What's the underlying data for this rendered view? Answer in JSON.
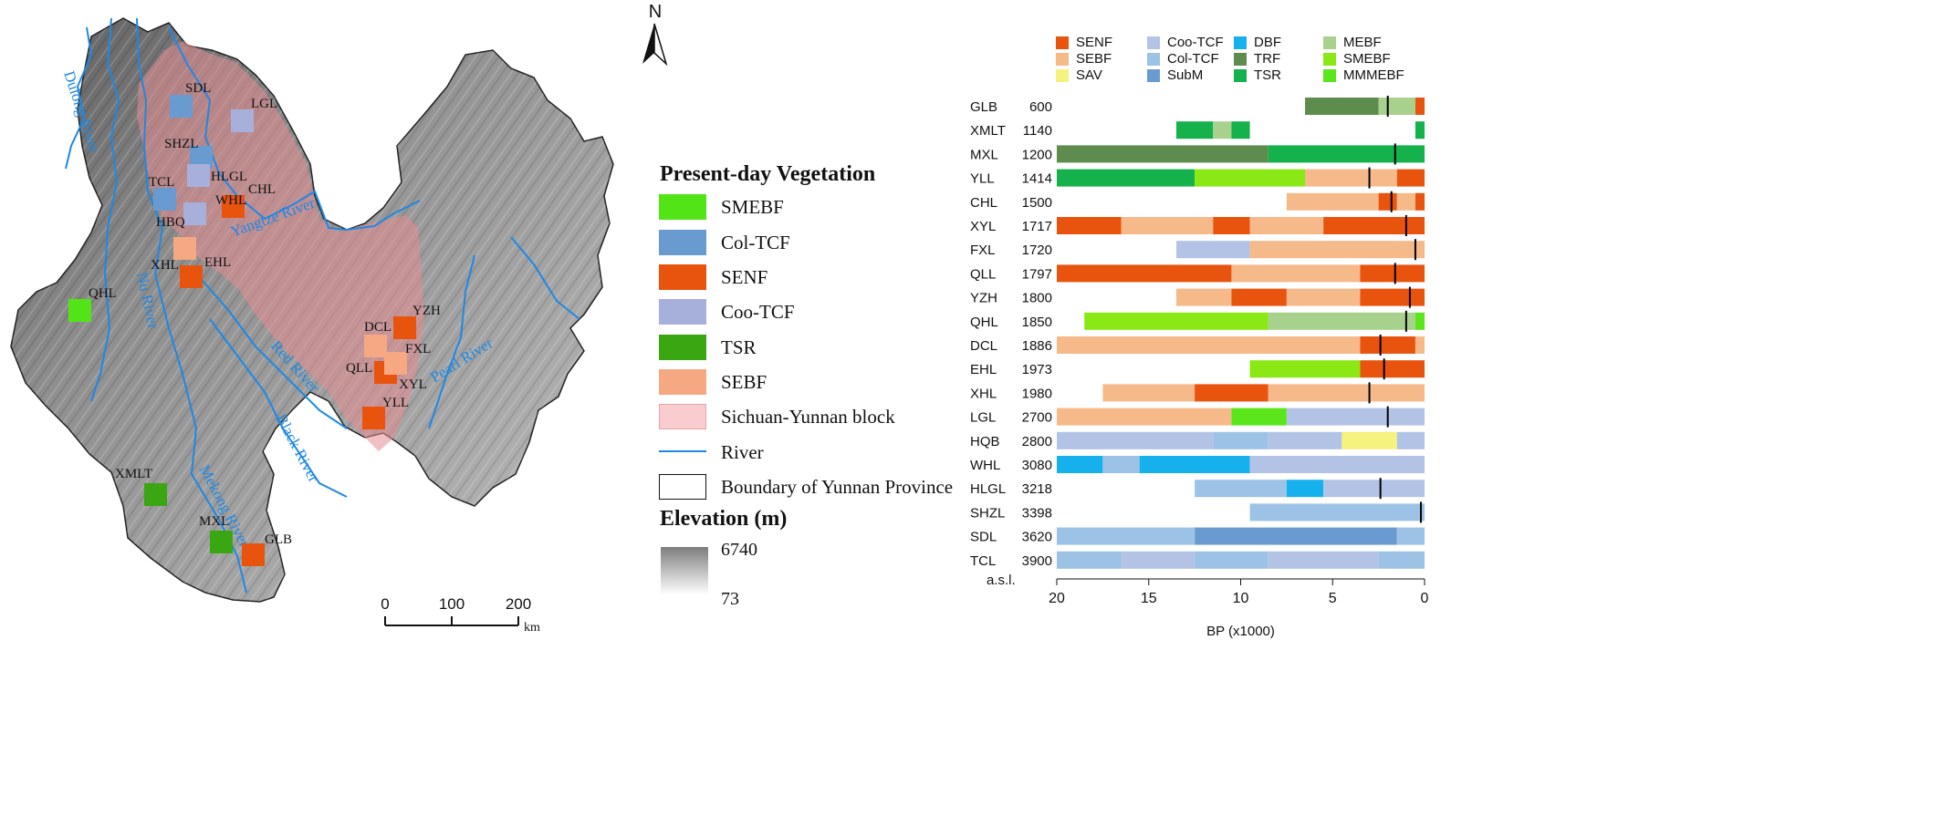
{
  "north": "N",
  "map_legend": {
    "veg_title": "Present-day Vegetation",
    "items": [
      {
        "label": "SMEBF",
        "color": "#52e416"
      },
      {
        "label": "Col-TCF",
        "color": "#6a9bd0"
      },
      {
        "label": "SENF",
        "color": "#e8540e"
      },
      {
        "label": "Coo-TCF",
        "color": "#a7b0db"
      },
      {
        "label": "TSR",
        "color": "#3aa612"
      },
      {
        "label": "SEBF",
        "color": "#f6a882"
      }
    ],
    "block_label": "Sichuan-Yunnan block",
    "river_label": "River",
    "boundary_label": "Boundary of Yunnan Province",
    "elev_title": "Elevation (m)",
    "elev_max": "6740",
    "elev_min": "73"
  },
  "scale_bar": {
    "ticks": [
      "0",
      "100",
      "200"
    ],
    "unit": "km"
  },
  "rivers": [
    "Yangtze River",
    "Red River",
    "Pearl River",
    "Black River",
    "Mekong River",
    "Nu River",
    "Dulong River"
  ],
  "sites": [
    {
      "label": "SDL",
      "color": "#6a9bd0"
    },
    {
      "label": "LGL",
      "color": "#a7b0db"
    },
    {
      "label": "SHZL",
      "color": "#6a9bd0"
    },
    {
      "label": "HLGL",
      "color": "#a7b0db"
    },
    {
      "label": "TCL",
      "color": "#6a9bd0"
    },
    {
      "label": "WHL",
      "color": "#a7b0db"
    },
    {
      "label": "CHL",
      "color": "#e8540e"
    },
    {
      "label": "HBQ",
      "color": "#a7b0db"
    },
    {
      "label": "XHL",
      "color": "#f6a882"
    },
    {
      "label": "EHL",
      "color": "#e8540e"
    },
    {
      "label": "QHL",
      "color": "#52e416"
    },
    {
      "label": "YZH",
      "color": "#e8540e"
    },
    {
      "label": "DCL",
      "color": "#f6a882"
    },
    {
      "label": "FXL",
      "color": "#f6a882"
    },
    {
      "label": "QLL",
      "color": "#e8540e"
    },
    {
      "label": "XYL",
      "color": "#f6a882"
    },
    {
      "label": "YLL",
      "color": "#e8540e"
    },
    {
      "label": "XMLT",
      "color": "#3aa612"
    },
    {
      "label": "MXL",
      "color": "#3aa612"
    },
    {
      "label": "GLB",
      "color": "#e8540e"
    }
  ],
  "veg_key": [
    {
      "label": "SENF",
      "color": "#e8540e"
    },
    {
      "label": "SEBF",
      "color": "#f6b98a"
    },
    {
      "label": "SAV",
      "color": "#f6f27e"
    },
    {
      "label": "Coo-TCF",
      "color": "#b3c3e6"
    },
    {
      "label": "Col-TCF",
      "color": "#9cc3e6"
    },
    {
      "label": "SubM",
      "color": "#6a9bd0"
    },
    {
      "label": "DBF",
      "color": "#16b1ec"
    },
    {
      "label": "TRF",
      "color": "#5e8c4f"
    },
    {
      "label": "TSR",
      "color": "#14b14c"
    },
    {
      "label": "MEBF",
      "color": "#a9d18e"
    },
    {
      "label": "SMEBF",
      "color": "#8ae814"
    },
    {
      "label": "MMMEBF",
      "color": "#5ae61a"
    }
  ],
  "chart_data": {
    "type": "bar",
    "subtype": "stacked-horizontal-timeline",
    "xlabel": "BP (x1000)",
    "xlim": [
      20,
      0
    ],
    "xticks": [
      20,
      15,
      10,
      5,
      0
    ],
    "elev_header": "a.s.l.",
    "rows": [
      {
        "site": "GLB",
        "elev": "600",
        "marker": 2.0,
        "segs": [
          [
            6.5,
            2.5,
            "TRF"
          ],
          [
            2.5,
            0.5,
            "MEBF"
          ],
          [
            0.5,
            0,
            "SENF"
          ]
        ]
      },
      {
        "site": "XMLT",
        "elev": "1140",
        "marker": null,
        "segs": [
          [
            13.5,
            11.5,
            "TSR"
          ],
          [
            11.5,
            10.5,
            "MEBF"
          ],
          [
            10.5,
            9.5,
            "TSR"
          ],
          [
            0.5,
            0,
            "TSR"
          ]
        ]
      },
      {
        "site": "MXL",
        "elev": "1200",
        "marker": 1.6,
        "segs": [
          [
            20,
            8.5,
            "TRF"
          ],
          [
            8.5,
            0,
            "TSR"
          ]
        ]
      },
      {
        "site": "YLL",
        "elev": "1414",
        "marker": 3.0,
        "segs": [
          [
            20,
            12.5,
            "TSR"
          ],
          [
            12.5,
            6.5,
            "SMEBF"
          ],
          [
            6.5,
            1.5,
            "SEBF"
          ],
          [
            1.5,
            0,
            "SENF"
          ]
        ]
      },
      {
        "site": "CHL",
        "elev": "1500",
        "marker": 1.8,
        "segs": [
          [
            7.5,
            2.5,
            "SEBF"
          ],
          [
            2.5,
            1.5,
            "SENF"
          ],
          [
            1.5,
            0.5,
            "SEBF"
          ],
          [
            0.5,
            0,
            "SENF"
          ]
        ]
      },
      {
        "site": "XYL",
        "elev": "1717",
        "marker": 1.0,
        "segs": [
          [
            20,
            16.5,
            "SENF"
          ],
          [
            16.5,
            11.5,
            "SEBF"
          ],
          [
            11.5,
            9.5,
            "SENF"
          ],
          [
            9.5,
            5.5,
            "SEBF"
          ],
          [
            5.5,
            0,
            "SENF"
          ]
        ]
      },
      {
        "site": "FXL",
        "elev": "1720",
        "marker": 0.5,
        "segs": [
          [
            13.5,
            9.5,
            "Coo-TCF"
          ],
          [
            9.5,
            0,
            "SEBF"
          ]
        ]
      },
      {
        "site": "QLL",
        "elev": "1797",
        "marker": 1.6,
        "segs": [
          [
            20,
            10.5,
            "SENF"
          ],
          [
            10.5,
            3.5,
            "SEBF"
          ],
          [
            3.5,
            0,
            "SENF"
          ]
        ]
      },
      {
        "site": "YZH",
        "elev": "1800",
        "marker": 0.8,
        "segs": [
          [
            13.5,
            10.5,
            "SEBF"
          ],
          [
            10.5,
            7.5,
            "SENF"
          ],
          [
            7.5,
            3.5,
            "SEBF"
          ],
          [
            3.5,
            0,
            "SENF"
          ]
        ]
      },
      {
        "site": "QHL",
        "elev": "1850",
        "marker": 1.0,
        "segs": [
          [
            18.5,
            8.5,
            "SMEBF"
          ],
          [
            8.5,
            0.5,
            "MEBF"
          ],
          [
            0.5,
            0,
            "MMMEBF"
          ]
        ]
      },
      {
        "site": "DCL",
        "elev": "1886",
        "marker": 2.4,
        "segs": [
          [
            20,
            3.5,
            "SEBF"
          ],
          [
            3.5,
            0.5,
            "SENF"
          ],
          [
            0.5,
            0,
            "SEBF"
          ]
        ]
      },
      {
        "site": "EHL",
        "elev": "1973",
        "marker": 2.2,
        "segs": [
          [
            9.5,
            3.5,
            "SMEBF"
          ],
          [
            3.5,
            0,
            "SENF"
          ]
        ]
      },
      {
        "site": "XHL",
        "elev": "1980",
        "marker": 3.0,
        "segs": [
          [
            17.5,
            12.5,
            "SEBF"
          ],
          [
            12.5,
            8.5,
            "SENF"
          ],
          [
            8.5,
            0,
            "SEBF"
          ]
        ]
      },
      {
        "site": "LGL",
        "elev": "2700",
        "marker": 2.0,
        "segs": [
          [
            20,
            10.5,
            "SEBF"
          ],
          [
            10.5,
            7.5,
            "MMMEBF"
          ],
          [
            7.5,
            0,
            "Coo-TCF"
          ]
        ]
      },
      {
        "site": "HQB",
        "elev": "2800",
        "marker": null,
        "segs": [
          [
            20,
            11.5,
            "Coo-TCF"
          ],
          [
            11.5,
            8.5,
            "Col-TCF"
          ],
          [
            8.5,
            4.5,
            "Coo-TCF"
          ],
          [
            4.5,
            1.5,
            "SAV"
          ],
          [
            1.5,
            0,
            "Coo-TCF"
          ]
        ]
      },
      {
        "site": "WHL",
        "elev": "3080",
        "marker": null,
        "segs": [
          [
            20,
            17.5,
            "DBF"
          ],
          [
            17.5,
            15.5,
            "Col-TCF"
          ],
          [
            15.5,
            9.5,
            "DBF"
          ],
          [
            9.5,
            0,
            "Coo-TCF"
          ]
        ]
      },
      {
        "site": "HLGL",
        "elev": "3218",
        "marker": 2.4,
        "segs": [
          [
            12.5,
            7.5,
            "Col-TCF"
          ],
          [
            7.5,
            5.5,
            "DBF"
          ],
          [
            5.5,
            0,
            "Coo-TCF"
          ]
        ]
      },
      {
        "site": "SHZL",
        "elev": "3398",
        "marker": 0.2,
        "segs": [
          [
            9.5,
            0,
            "Col-TCF"
          ]
        ]
      },
      {
        "site": "SDL",
        "elev": "3620",
        "marker": null,
        "segs": [
          [
            20,
            12.5,
            "Col-TCF"
          ],
          [
            12.5,
            1.5,
            "SubM"
          ],
          [
            1.5,
            0,
            "Col-TCF"
          ]
        ]
      },
      {
        "site": "TCL",
        "elev": "3900",
        "marker": null,
        "segs": [
          [
            20,
            16.5,
            "Col-TCF"
          ],
          [
            16.5,
            12.5,
            "Coo-TCF"
          ],
          [
            12.5,
            8.5,
            "Col-TCF"
          ],
          [
            8.5,
            2.5,
            "Coo-TCF"
          ],
          [
            2.5,
            0,
            "Col-TCF"
          ]
        ]
      }
    ]
  }
}
